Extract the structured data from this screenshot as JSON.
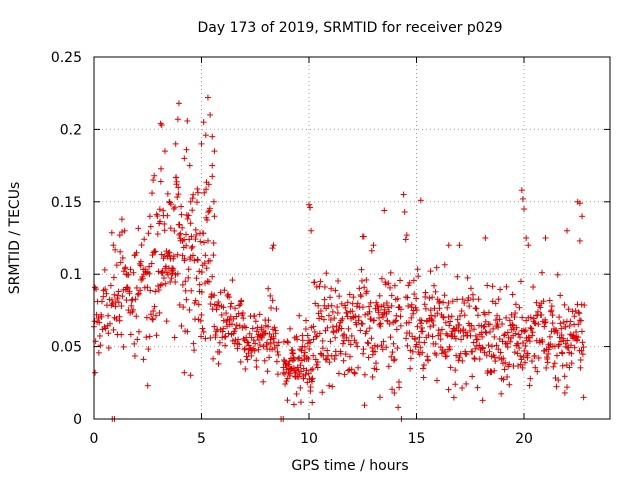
{
  "chart_data": {
    "type": "scatter",
    "title": "Day 173 of 2019, SRMTID for receiver p029",
    "xlabel": "GPS time / hours",
    "ylabel": "SRMTID / TECUs",
    "xlim": [
      0,
      24
    ],
    "ylim": [
      0,
      0.25
    ],
    "xticks": [
      0,
      5,
      10,
      15,
      20
    ],
    "xtick_labels": [
      "0",
      "5",
      "10",
      "15",
      "20"
    ],
    "yticks": [
      0,
      0.05,
      0.1,
      0.15,
      0.2,
      0.25
    ],
    "ytick_labels": [
      "0",
      "0.05",
      "0.1",
      "0.15",
      "0.2",
      "0.25"
    ],
    "grid": true,
    "marker": "+",
    "color": "#e00000",
    "series": [
      {
        "name": "SRMTID",
        "segments": [
          {
            "from": 0.0,
            "to": 0.8,
            "step": 0.025,
            "mean": 0.068,
            "spread": 0.014
          },
          {
            "from": 0.8,
            "to": 2.0,
            "step": 0.02,
            "mean": 0.085,
            "spread": 0.02
          },
          {
            "from": 2.0,
            "to": 3.0,
            "step": 0.02,
            "mean": 0.095,
            "spread": 0.025
          },
          {
            "from": 3.0,
            "to": 4.5,
            "step": 0.015,
            "mean": 0.115,
            "spread": 0.035
          },
          {
            "from": 4.5,
            "to": 5.6,
            "step": 0.015,
            "mean": 0.11,
            "spread": 0.035
          },
          {
            "from": 5.6,
            "to": 7.0,
            "step": 0.02,
            "mean": 0.065,
            "spread": 0.015
          },
          {
            "from": 7.0,
            "to": 8.6,
            "step": 0.02,
            "mean": 0.055,
            "spread": 0.012
          },
          {
            "from": 8.8,
            "to": 10.2,
            "step": 0.015,
            "mean": 0.04,
            "spread": 0.012
          },
          {
            "from": 10.2,
            "to": 12.0,
            "step": 0.018,
            "mean": 0.062,
            "spread": 0.017
          },
          {
            "from": 12.0,
            "to": 14.3,
            "step": 0.018,
            "mean": 0.065,
            "spread": 0.02
          },
          {
            "from": 14.5,
            "to": 16.5,
            "step": 0.018,
            "mean": 0.068,
            "spread": 0.018
          },
          {
            "from": 16.5,
            "to": 19.5,
            "step": 0.018,
            "mean": 0.06,
            "spread": 0.016
          },
          {
            "from": 19.5,
            "to": 22.8,
            "step": 0.018,
            "mean": 0.058,
            "spread": 0.016
          }
        ],
        "spikes": [
          {
            "x": 0.9,
            "y": 0.12
          },
          {
            "x": 1.2,
            "y": 0.127
          },
          {
            "x": 1.3,
            "y": 0.138
          },
          {
            "x": 2.6,
            "y": 0.14
          },
          {
            "x": 2.7,
            "y": 0.156
          },
          {
            "x": 2.75,
            "y": 0.165
          },
          {
            "x": 2.8,
            "y": 0.168
          },
          {
            "x": 3.1,
            "y": 0.204
          },
          {
            "x": 3.15,
            "y": 0.203
          },
          {
            "x": 3.3,
            "y": 0.185
          },
          {
            "x": 3.5,
            "y": 0.15
          },
          {
            "x": 3.8,
            "y": 0.19
          },
          {
            "x": 3.9,
            "y": 0.207
          },
          {
            "x": 3.95,
            "y": 0.218
          },
          {
            "x": 4.2,
            "y": 0.18
          },
          {
            "x": 4.3,
            "y": 0.186
          },
          {
            "x": 4.5,
            "y": 0.15
          },
          {
            "x": 5.0,
            "y": 0.19
          },
          {
            "x": 5.1,
            "y": 0.205
          },
          {
            "x": 5.2,
            "y": 0.196
          },
          {
            "x": 5.3,
            "y": 0.222
          },
          {
            "x": 5.4,
            "y": 0.21
          },
          {
            "x": 5.5,
            "y": 0.195
          },
          {
            "x": 5.6,
            "y": 0.185
          },
          {
            "x": 5.5,
            "y": 0.175
          },
          {
            "x": 5.6,
            "y": 0.14
          },
          {
            "x": 8.1,
            "y": 0.09
          },
          {
            "x": 8.2,
            "y": 0.085
          },
          {
            "x": 8.3,
            "y": 0.118
          },
          {
            "x": 8.35,
            "y": 0.12
          },
          {
            "x": 10.0,
            "y": 0.148
          },
          {
            "x": 10.05,
            "y": 0.146
          },
          {
            "x": 10.1,
            "y": 0.13
          },
          {
            "x": 12.5,
            "y": 0.126
          },
          {
            "x": 12.55,
            "y": 0.126
          },
          {
            "x": 13.0,
            "y": 0.12
          },
          {
            "x": 13.5,
            "y": 0.144
          },
          {
            "x": 14.4,
            "y": 0.155
          },
          {
            "x": 14.45,
            "y": 0.143
          },
          {
            "x": 14.5,
            "y": 0.124
          },
          {
            "x": 14.55,
            "y": 0.127
          },
          {
            "x": 15.2,
            "y": 0.151
          },
          {
            "x": 16.5,
            "y": 0.12
          },
          {
            "x": 17.0,
            "y": 0.12
          },
          {
            "x": 18.2,
            "y": 0.125
          },
          {
            "x": 19.9,
            "y": 0.158
          },
          {
            "x": 19.95,
            "y": 0.152
          },
          {
            "x": 20.0,
            "y": 0.145
          },
          {
            "x": 20.1,
            "y": 0.125
          },
          {
            "x": 20.2,
            "y": 0.12
          },
          {
            "x": 21.0,
            "y": 0.125
          },
          {
            "x": 22.0,
            "y": 0.13
          },
          {
            "x": 22.5,
            "y": 0.15
          },
          {
            "x": 22.6,
            "y": 0.149
          },
          {
            "x": 22.7,
            "y": 0.14
          },
          {
            "x": 22.6,
            "y": 0.123
          },
          {
            "x": 1.5,
            "y": 0.1
          },
          {
            "x": 2.5,
            "y": 0.023
          },
          {
            "x": 4.2,
            "y": 0.032
          },
          {
            "x": 9.0,
            "y": 0.013
          },
          {
            "x": 9.3,
            "y": 0.01
          },
          {
            "x": 13.3,
            "y": 0.015
          },
          {
            "x": 16.8,
            "y": 0.024
          },
          {
            "x": 21.9,
            "y": 0.018
          },
          {
            "x": 22.0,
            "y": 0.022
          },
          {
            "x": 0.05,
            "y": 0.032
          }
        ],
        "zero_points": [
          {
            "x": 0.85,
            "y": 0
          },
          {
            "x": 0.95,
            "y": 0
          },
          {
            "x": 8.7,
            "y": 0
          },
          {
            "x": 8.8,
            "y": 0
          },
          {
            "x": 14.3,
            "y": 0
          }
        ]
      }
    ]
  }
}
